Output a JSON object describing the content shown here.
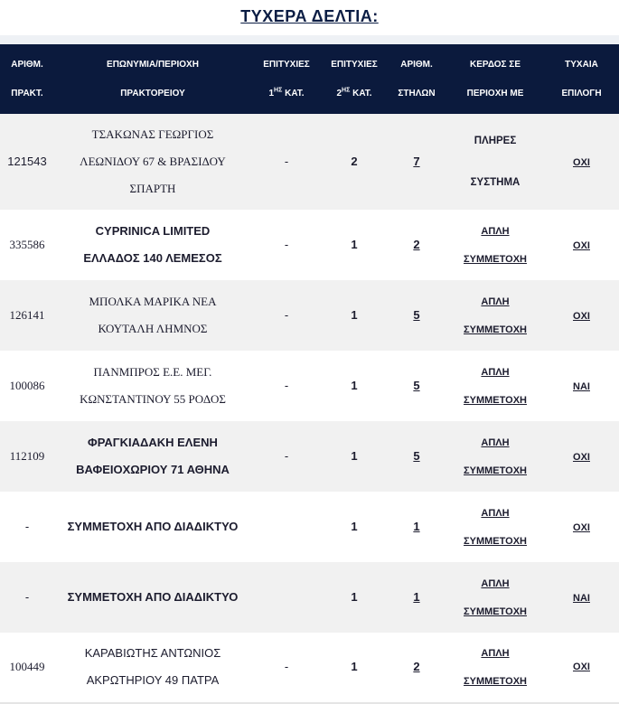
{
  "title": "ΤΥΧΕΡΑ ΔΕΛΤΙΑ:",
  "headers": {
    "agency_no": [
      "ΑΡΙΘΜ.",
      "ΠΡΑΚΤ."
    ],
    "agency_name": [
      "ΕΠΩΝΥΜΙΑ/ΠΕΡΙΟΧΗ",
      "ΠΡΑΚΤΟΡΕΙΟΥ"
    ],
    "wins_cat1": [
      "ΕΠΙΤΥΧΙΕΣ",
      "1",
      "ΗΣ",
      " ΚΑΤ."
    ],
    "wins_cat2": [
      "ΕΠΙΤΥΧΙΕΣ",
      "2",
      "ΗΣ",
      " ΚΑΤ."
    ],
    "columns": [
      "ΑΡΙΘΜ.",
      "ΣΤΗΛΩΝ"
    ],
    "gain": [
      "ΚΕΡΔΟΣ ΣΕ",
      "ΠΕΡΙΟΧΗ ΜΕ"
    ],
    "random": [
      "ΤΥΧΑΙΑ",
      "ΕΠΙΛΟΓΗ"
    ]
  },
  "rows": [
    {
      "agency_no": "121543",
      "name": [
        "ΤΣΑΚΩΝΑΣ ΓΕΩΡΓΙΟΣ",
        "ΛΕΩΝΙΔΟΥ 67 & ΒΡΑΣΙΔΟΥ",
        "ΣΠΑΡΤΗ"
      ],
      "wins1": "-",
      "wins2": "2",
      "columns": "7",
      "gain": [
        "ΠΛΗΡΕΣ",
        "ΣΥΣΤΗΜΑ"
      ],
      "random": "ΟΧΙ"
    },
    {
      "agency_no": "335586",
      "name": [
        "CYPRINICA LIMITED",
        "ΕΛΛΑΔΟΣ 140 ΛΕΜΕΣΟΣ"
      ],
      "wins1": "-",
      "wins2": "1",
      "columns": "2",
      "gain": [
        "ΑΠΛΗ",
        "ΣΥΜΜΕΤΟΧΗ"
      ],
      "random": "ΟΧΙ"
    },
    {
      "agency_no": "126141",
      "name": [
        "ΜΠΟΛΚΑ ΜΑΡΙΚΑ ΝΕΑ",
        "ΚΟΥΤΑΛΗ ΛΗΜΝΟΣ"
      ],
      "wins1": "-",
      "wins2": "1",
      "columns": "5",
      "gain": [
        "ΑΠΛΗ",
        "ΣΥΜΜΕΤΟΧΗ"
      ],
      "random": "ΟΧΙ"
    },
    {
      "agency_no": "100086",
      "name": [
        "ΠΑΝΜΠΡΟΣ Ε.Ε. ΜΕΓ.",
        "ΚΩΝΣΤΑΝΤΙΝΟΥ 55 ΡΟΔΟΣ"
      ],
      "wins1": "-",
      "wins2": "1",
      "columns": "5",
      "gain": [
        "ΑΠΛΗ",
        "ΣΥΜΜΕΤΟΧΗ"
      ],
      "random": "ΝΑΙ"
    },
    {
      "agency_no": "112109",
      "name": [
        "ΦΡΑΓΚΙΑΔΑΚΗ ΕΛΕΝΗ",
        "ΒΑΦΕΙΟΧΩΡΙΟΥ 71 ΑΘΗΝΑ"
      ],
      "wins1": "-",
      "wins2": "1",
      "columns": "5",
      "gain": [
        "ΑΠΛΗ",
        "ΣΥΜΜΕΤΟΧΗ"
      ],
      "random": "ΟΧΙ"
    },
    {
      "agency_no": "-",
      "name": [
        "ΣΥΜΜΕΤΟΧΗ ΑΠΟ ΔΙΑΔΙΚΤΥΟ"
      ],
      "wins1": "",
      "wins2": "1",
      "columns": "1",
      "gain": [
        "ΑΠΛΗ",
        "ΣΥΜΜΕΤΟΧΗ"
      ],
      "random": "ΟΧΙ"
    },
    {
      "agency_no": "-",
      "name": [
        "ΣΥΜΜΕΤΟΧΗ ΑΠΟ ΔΙΑΔΙΚΤΥΟ"
      ],
      "wins1": "",
      "wins2": "1",
      "columns": "1",
      "gain": [
        "ΑΠΛΗ",
        "ΣΥΜΜΕΤΟΧΗ"
      ],
      "random": "ΝΑΙ"
    },
    {
      "agency_no": "100449",
      "name": [
        "ΚΑΡΑΒΙΩΤΗΣ ΑΝΤΩΝΙΟΣ",
        "ΑΚΡΩΤΗΡΙΟΥ 49 ΠΑΤΡΑ"
      ],
      "wins1": "-",
      "wins2": "1",
      "columns": "2",
      "gain": [
        "ΑΠΛΗ",
        "ΣΥΜΜΕΤΟΧΗ"
      ],
      "random": "ΟΧΙ"
    }
  ]
}
